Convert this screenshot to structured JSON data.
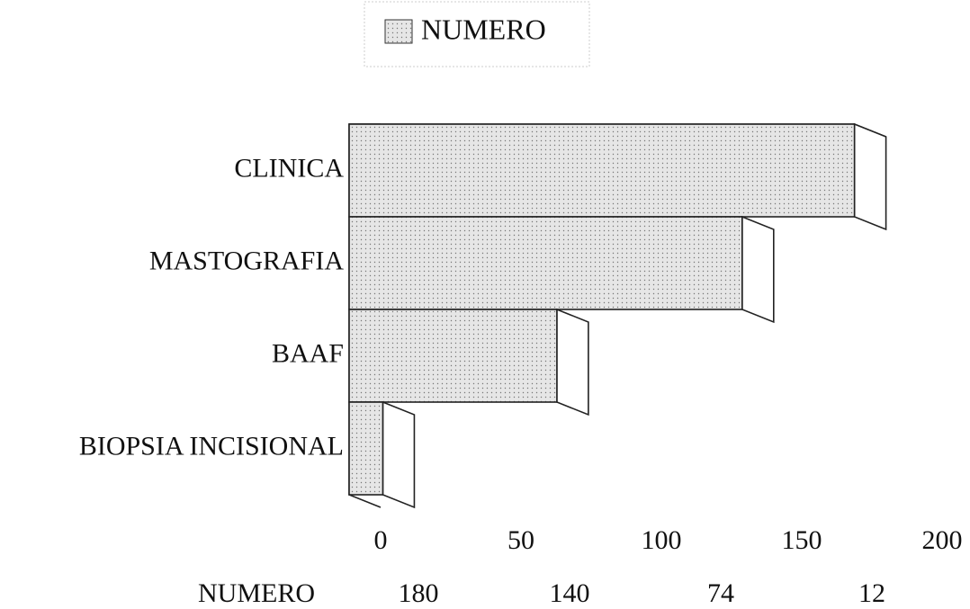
{
  "chart_data": {
    "type": "bar",
    "orientation": "horizontal",
    "categories": [
      "CLINICA",
      "MASTOGRAFIA",
      "BAAF",
      "BIOPSIA INCISIONAL"
    ],
    "series": [
      {
        "name": "NUMERO",
        "color": "#e6e6e6",
        "values": [
          180,
          140,
          74,
          12
        ]
      }
    ],
    "xlim": [
      0,
      200
    ],
    "xticks": [
      0,
      50,
      100,
      150,
      200
    ],
    "legend": "top",
    "data_table": true,
    "grid": false
  }
}
